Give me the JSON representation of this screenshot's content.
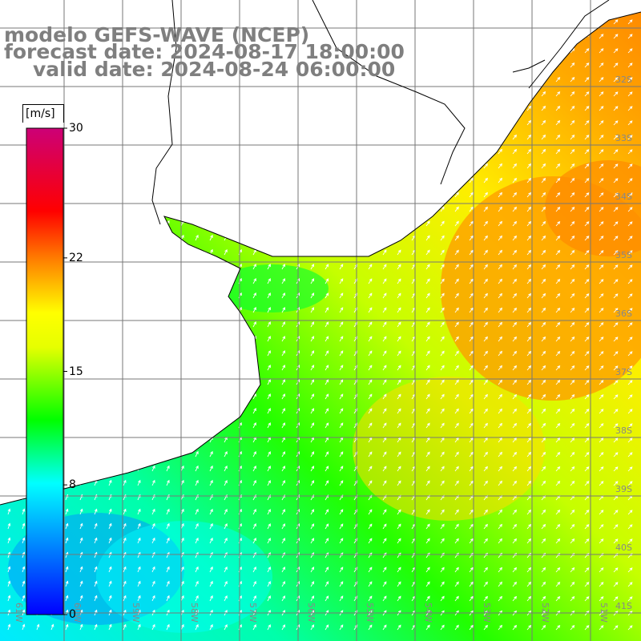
{
  "title": {
    "line1": "modelo GEFS-WAVE (NCEP)",
    "line2": "forecast date: 2024-08-17 18:00:00",
    "line3": "valid date: 2024-08-24 06:00:00"
  },
  "colorbar": {
    "unit": "[m/s]",
    "ticks": [
      {
        "value": 30,
        "label": "30"
      },
      {
        "value": 22,
        "label": "22"
      },
      {
        "value": 15,
        "label": "15"
      },
      {
        "value": 8,
        "label": "8"
      },
      {
        "value": 0,
        "label": "0"
      }
    ],
    "colors": [
      "#0000ff",
      "#00ffff",
      "#00ff00",
      "#ffff00",
      "#ff7f00",
      "#ff0000",
      "#cc0077"
    ]
  },
  "map": {
    "lat_labels": [
      "32S",
      "33S",
      "34S",
      "35S",
      "36S",
      "37S",
      "38S",
      "39S",
      "40S",
      "41S"
    ],
    "lon_labels": [
      "61W",
      "60W",
      "59W",
      "58W",
      "57W",
      "56W",
      "55W",
      "54W",
      "53W",
      "52W",
      "51W"
    ],
    "field_colors": {
      "cyan": "#00ffff",
      "green": "#00ff00",
      "yellow": "#ffff00",
      "orange": "#ff9900",
      "gridline": "#777777",
      "coast": "#000000",
      "arrow": "#ffffff"
    }
  }
}
